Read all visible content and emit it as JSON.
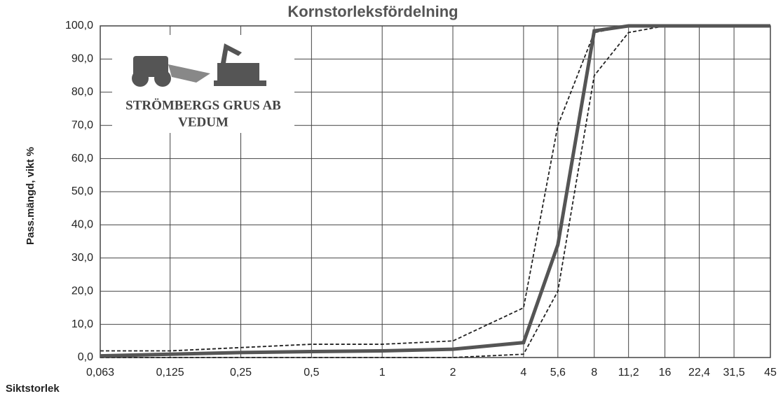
{
  "chart_data": {
    "type": "line",
    "title": "Kornstorleksfördelning",
    "xlabel": "Siktstorlek",
    "ylabel": "Pass.mängd, vikt %",
    "annotations": [
      "STRÖMBERGS GRUS AB",
      "VEDUM"
    ],
    "x": [
      0.063,
      0.125,
      0.25,
      0.5,
      1,
      2,
      4,
      5.6,
      8,
      11.2,
      16,
      22.4,
      31.5,
      45
    ],
    "xscale": "log",
    "xlim": [
      0.063,
      45
    ],
    "xticks": [
      {
        "value": 0.063,
        "label": "0,063"
      },
      {
        "value": 0.125,
        "label": "0,125"
      },
      {
        "value": 0.25,
        "label": "0,25"
      },
      {
        "value": 0.5,
        "label": "0,5"
      },
      1,
      2,
      4,
      {
        "value": 5.6,
        "label": "5,6"
      },
      8,
      {
        "value": 11.2,
        "label": "11,2"
      },
      16,
      {
        "value": 22.4,
        "label": "22,4"
      },
      {
        "value": 31.5,
        "label": "31,5"
      },
      45
    ],
    "ylim": [
      0,
      100
    ],
    "yticks": [
      {
        "value": 0,
        "label": "0,0"
      },
      {
        "value": 10,
        "label": "10,0"
      },
      {
        "value": 20,
        "label": "20,0"
      },
      {
        "value": 30,
        "label": "30,0"
      },
      {
        "value": 40,
        "label": "40,0"
      },
      {
        "value": 50,
        "label": "50,0"
      },
      {
        "value": 60,
        "label": "60,0"
      },
      {
        "value": 70,
        "label": "70,0"
      },
      {
        "value": 80,
        "label": "80,0"
      },
      {
        "value": 90,
        "label": "90,0"
      },
      {
        "value": 100,
        "label": "100,0"
      }
    ],
    "grid": true,
    "series": [
      {
        "color": "#222222",
        "style": "dashed",
        "values": [
          2,
          2,
          3,
          4,
          4,
          5,
          15,
          70,
          98,
          100,
          100,
          100,
          100,
          100
        ]
      },
      {
        "color": "#222222",
        "style": "dashed",
        "values": [
          0,
          0,
          0,
          0,
          0,
          0,
          1,
          20,
          85,
          98,
          100,
          100,
          100,
          100
        ]
      },
      {
        "color": "#555555",
        "style": "solid",
        "values": [
          0.5,
          1,
          1.5,
          1.8,
          2,
          2.5,
          4.5,
          34,
          98.5,
          100,
          100,
          100,
          100,
          100
        ]
      }
    ]
  }
}
